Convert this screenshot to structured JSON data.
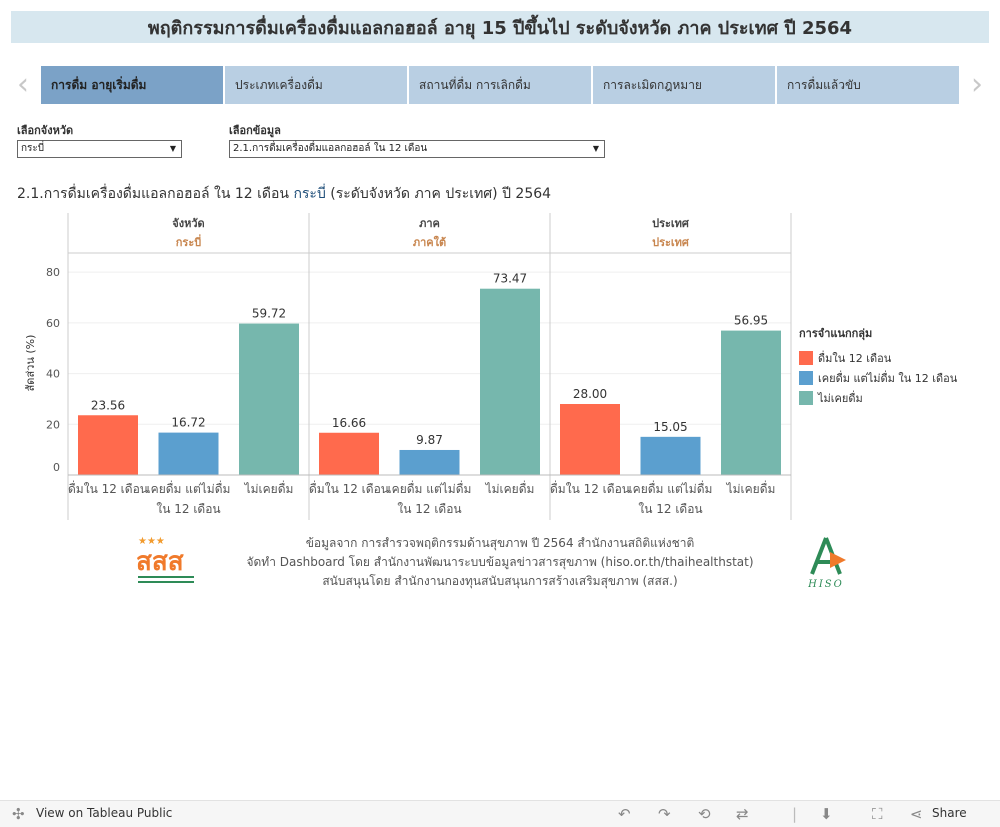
{
  "title": "พฤติกรรมการดื่มเครื่องดื่มแอลกอฮอล์ อายุ 15 ปีขึ้นไป ระดับจังหวัด ภาค ประเทศ ปี 2564",
  "nav": {
    "prev_glyph": "‹",
    "next_glyph": "›"
  },
  "tabs": [
    {
      "label": "การดื่ม อายุเริ่มดื่ม"
    },
    {
      "label": "ประเภทเครื่องดื่ม"
    },
    {
      "label": "สถานที่ดื่ม การเลิกดื่ม"
    },
    {
      "label": "การละเมิดกฎหมาย"
    },
    {
      "label": "การดื่มแล้วขับ"
    }
  ],
  "filters": {
    "province_label": "เลือกจังหวัด",
    "province_value": "กระบี่",
    "data_label": "เลือกข้อมูล",
    "data_value": "2.1.การดื่มเครื่องดื่มแอลกอฮอล์ ใน 12 เดือน"
  },
  "chart_heading": {
    "prefix": "2.1.การดื่มเครื่องดื่มแอลกอฮอล์ ใน 12 เดือน",
    "highlight": "กระบี่",
    "suffix": "(ระดับจังหวัด ภาค ประเทศ) ปี 2564"
  },
  "chart_data": {
    "type": "bar",
    "ylabel": "สัดส่วน (%)",
    "ylim": [
      0,
      84
    ],
    "yticks": [
      0,
      20,
      40,
      60,
      80
    ],
    "panels": [
      {
        "header": "จังหวัด",
        "subheader": "กระบี่",
        "values": [
          23.56,
          16.72,
          59.72
        ]
      },
      {
        "header": "ภาค",
        "subheader": "ภาคใต้",
        "values": [
          16.66,
          9.87,
          73.47
        ]
      },
      {
        "header": "ประเทศ",
        "subheader": "ประเทศ",
        "values": [
          28.0,
          15.05,
          56.95
        ]
      }
    ],
    "category_lines": [
      [
        "ดื่มใน 12 เดือน"
      ],
      [
        "เคยดื่ม แต่ไม่ดื่ม",
        "ใน 12 เดือน"
      ],
      [
        "ไม่เคยดื่ม"
      ]
    ],
    "value_labels": [
      [
        "23.56",
        "16.72",
        "59.72"
      ],
      [
        "16.66",
        "9.87",
        "73.47"
      ],
      [
        "28.00",
        "15.05",
        "56.95"
      ]
    ],
    "colors": [
      "#ff6a4d",
      "#5b9fcf",
      "#76b7ad"
    ],
    "legend_title": "การจำแนกกลุ่ม",
    "legend": [
      "ดื่มใน 12 เดือน",
      "เคยดื่ม แต่ไม่ดื่ม ใน 12 เดือน",
      "ไม่เคยดื่ม"
    ],
    "subheader_color": "#c8864f"
  },
  "credits": [
    "ข้อมูลจาก การสำรวจพฤติกรรมด้านสุขภาพ ปี 2564 สำนักงานสถิติแห่งชาติ",
    "จัดทำ Dashboard โดย สำนักงานพัฒนาระบบข้อมูลข่าวสารสุขภาพ (hiso.or.th/thaihealthstat)",
    "สนับสนุนโดย สำนักงานกองทุนสนับสนุนการสร้างเสริมสุขภาพ (สสส.)"
  ],
  "logos": {
    "left_text": "สสส",
    "right_text": "HISO"
  },
  "footer": {
    "view_label": "View on Tableau Public",
    "share_label": "Share"
  }
}
